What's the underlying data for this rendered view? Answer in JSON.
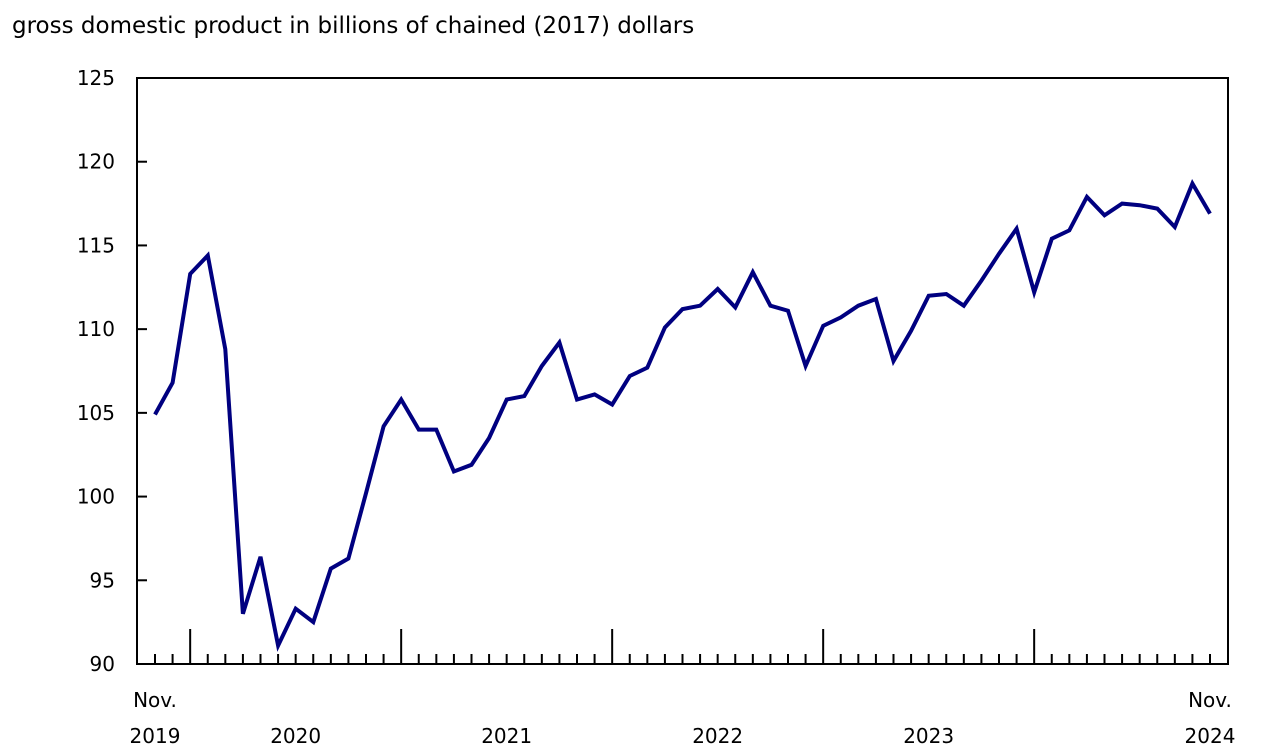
{
  "chart_data": {
    "type": "line",
    "title": "gross domestic product in billions of chained (2017) dollars",
    "xlabel": "",
    "ylabel": "",
    "ylim": [
      90,
      125
    ],
    "yticks": [
      90,
      95,
      100,
      105,
      110,
      115,
      120,
      125
    ],
    "grid": false,
    "line_color": "#000080",
    "x_start": "2019-11",
    "x_labels": [
      {
        "month": "2019-11",
        "line1": "Nov.",
        "line2": "2019"
      },
      {
        "month": "2020-07",
        "line1": "",
        "line2": "2020"
      },
      {
        "month": "2021-07",
        "line1": "",
        "line2": "2021"
      },
      {
        "month": "2022-07",
        "line1": "",
        "line2": "2022"
      },
      {
        "month": "2023-07",
        "line1": "",
        "line2": "2023"
      },
      {
        "month": "2024-11",
        "line1": "Nov.",
        "line2": "2024"
      }
    ],
    "x": [
      "2019-11",
      "2019-12",
      "2020-01",
      "2020-02",
      "2020-03",
      "2020-04",
      "2020-05",
      "2020-06",
      "2020-07",
      "2020-08",
      "2020-09",
      "2020-10",
      "2020-11",
      "2020-12",
      "2021-01",
      "2021-02",
      "2021-03",
      "2021-04",
      "2021-05",
      "2021-06",
      "2021-07",
      "2021-08",
      "2021-09",
      "2021-10",
      "2021-11",
      "2021-12",
      "2022-01",
      "2022-02",
      "2022-03",
      "2022-04",
      "2022-05",
      "2022-06",
      "2022-07",
      "2022-08",
      "2022-09",
      "2022-10",
      "2022-11",
      "2022-12",
      "2023-01",
      "2023-02",
      "2023-03",
      "2023-04",
      "2023-05",
      "2023-06",
      "2023-07",
      "2023-08",
      "2023-09",
      "2023-10",
      "2023-11",
      "2023-12",
      "2024-01",
      "2024-02",
      "2024-03",
      "2024-04",
      "2024-05",
      "2024-06",
      "2024-07",
      "2024-08",
      "2024-09",
      "2024-10",
      "2024-11"
    ],
    "values": [
      104.9,
      106.8,
      113.3,
      114.4,
      108.8,
      93.0,
      96.4,
      91.1,
      93.3,
      92.5,
      95.7,
      96.3,
      100.2,
      104.2,
      105.8,
      104.0,
      104.0,
      101.5,
      101.9,
      103.5,
      105.8,
      106.0,
      107.8,
      109.2,
      105.8,
      106.1,
      105.5,
      107.2,
      107.7,
      110.1,
      111.2,
      111.4,
      112.4,
      111.3,
      113.4,
      111.4,
      111.1,
      107.8,
      110.2,
      110.7,
      111.4,
      111.8,
      108.1,
      109.9,
      112.0,
      112.1,
      111.4,
      112.9,
      114.5,
      116.0,
      112.2,
      115.4,
      115.9,
      117.9,
      116.8,
      117.5,
      117.4,
      117.2,
      116.1,
      118.7,
      116.9
    ]
  }
}
